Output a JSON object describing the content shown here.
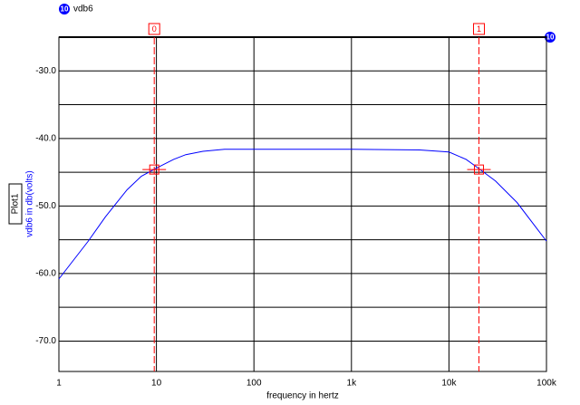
{
  "chart_data": {
    "type": "line",
    "plot_name": "Plot1",
    "trace_id": "10",
    "xlabel": "frequency in hertz",
    "ylabel": "vdb6 in db(volts)",
    "xscale": "log",
    "xlim": [
      1,
      100000
    ],
    "xticks": [
      1,
      10,
      100,
      {
        "value": 1000,
        "label": "1k"
      },
      {
        "value": 10000,
        "label": "10k"
      },
      {
        "value": 100000,
        "label": "100k"
      }
    ],
    "ylim": [
      -74.5,
      -25
    ],
    "yticks": [
      {
        "value": -30,
        "label": "-30.0"
      },
      {
        "value": -40,
        "label": "-40.0"
      },
      {
        "value": -50,
        "label": "-50.0"
      },
      {
        "value": -60,
        "label": "-60.0"
      },
      {
        "value": -70,
        "label": "-70.0"
      }
    ],
    "y_minor_grid": [
      -35,
      -45,
      -55,
      -65
    ],
    "grid": true,
    "x": [
      1,
      2,
      3,
      5,
      7,
      10,
      15,
      20,
      30,
      50,
      100,
      1000,
      5000,
      10000,
      15000,
      20000,
      30000,
      50000,
      100000
    ],
    "series": [
      {
        "name": "vdb6",
        "color": "#0000ff",
        "values": [
          -60.8,
          -55.2,
          -51.6,
          -47.6,
          -45.6,
          -44.4,
          -43.1,
          -42.4,
          -41.9,
          -41.6,
          -41.6,
          -41.6,
          -41.7,
          -42.0,
          -43.1,
          -44.4,
          -46.3,
          -49.5,
          -55.2
        ]
      }
    ],
    "cursors": [
      {
        "label": "0",
        "x": 9.5,
        "y": -44.6
      },
      {
        "label": "1",
        "x": 20300,
        "y": -44.6
      }
    ],
    "cursor_color": "#ff0000"
  }
}
